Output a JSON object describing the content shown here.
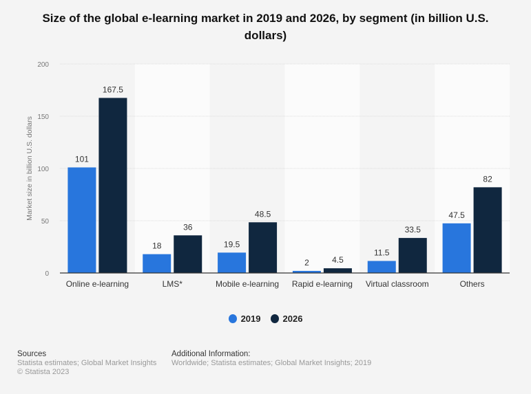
{
  "chart_data": {
    "type": "bar",
    "title": "Size of the global e-learning market in 2019 and 2026, by segment (in billion U.S. dollars)",
    "xlabel": "",
    "ylabel": "Market size in billion U.S. dollars",
    "ylim": [
      0,
      200
    ],
    "yticks": [
      0,
      50,
      100,
      150,
      200
    ],
    "grid": true,
    "legend_placement": "bottom",
    "categories": [
      "Online e-learning",
      "LMS*",
      "Mobile e-learning",
      "Rapid e-learning",
      "Virtual classroom",
      "Others"
    ],
    "series": [
      {
        "name": "2019",
        "color": "#2876dd",
        "values": [
          101,
          18,
          19.5,
          2,
          11.5,
          47.5
        ],
        "labels": [
          "101",
          "18",
          "19.5",
          "2",
          "11.5",
          "47.5"
        ]
      },
      {
        "name": "2026",
        "color": "#10273f",
        "values": [
          167.5,
          36,
          48.5,
          4.5,
          33.5,
          82
        ],
        "labels": [
          "167.5",
          "36",
          "48.5",
          "4.5",
          "33.5",
          "82"
        ]
      }
    ]
  },
  "footer": {
    "sources_heading": "Sources",
    "sources_text": "Statista estimates; Global Market Insights",
    "copyright": "© Statista 2023",
    "additional_heading": "Additional Information:",
    "additional_text": "Worldwide; Statista estimates; Global Market Insights; 2019"
  }
}
